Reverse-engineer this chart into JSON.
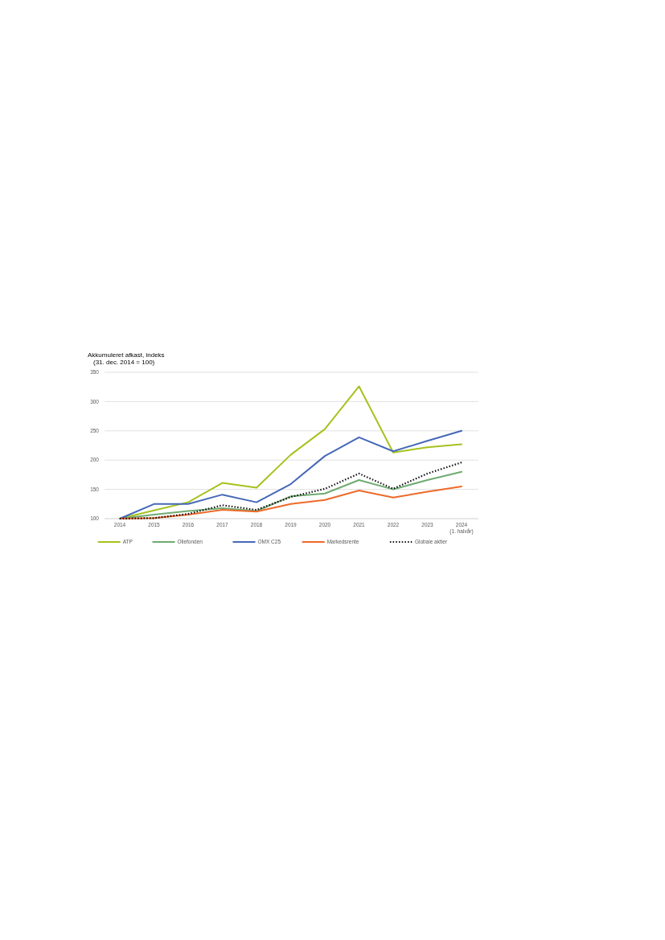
{
  "chart_data": {
    "type": "line",
    "title": "Akkumuleret afkast, indeks",
    "subtitle": "(31. dec. 2014 = 100)",
    "categories": [
      "2014",
      "2015",
      "2016",
      "2017",
      "2018",
      "2019",
      "2020",
      "2021",
      "2022",
      "2023",
      "2024\n(1. halvår)"
    ],
    "series": [
      {
        "name": "ATP",
        "color": "#a5c21f",
        "values": [
          100,
          114,
          128,
          161,
          153,
          209,
          253,
          326,
          213,
          222,
          227
        ]
      },
      {
        "name": "Oliefonden",
        "color": "#6fab71",
        "values": [
          100,
          107,
          113,
          118,
          113,
          138,
          143,
          166,
          150,
          166,
          180
        ]
      },
      {
        "name": "OMX C25",
        "color": "#4668b8",
        "values": [
          100,
          125,
          125,
          141,
          128,
          159,
          207,
          239,
          215,
          233,
          250
        ]
      },
      {
        "name": "Markedsrente",
        "color": "#ee6a2a",
        "values": [
          100,
          101,
          107,
          115,
          112,
          125,
          132,
          148,
          136,
          146,
          155
        ]
      },
      {
        "name": "Globale aktier",
        "color": "#111111",
        "line_style": "dotted",
        "values": [
          100,
          101,
          108,
          123,
          115,
          137,
          151,
          177,
          151,
          177,
          196
        ]
      }
    ],
    "ylim": [
      100,
      350
    ],
    "yticks": [
      100,
      150,
      200,
      250,
      300,
      350
    ],
    "grid": "y",
    "legend": "bottom",
    "marker": "none",
    "line_style": "solid"
  }
}
